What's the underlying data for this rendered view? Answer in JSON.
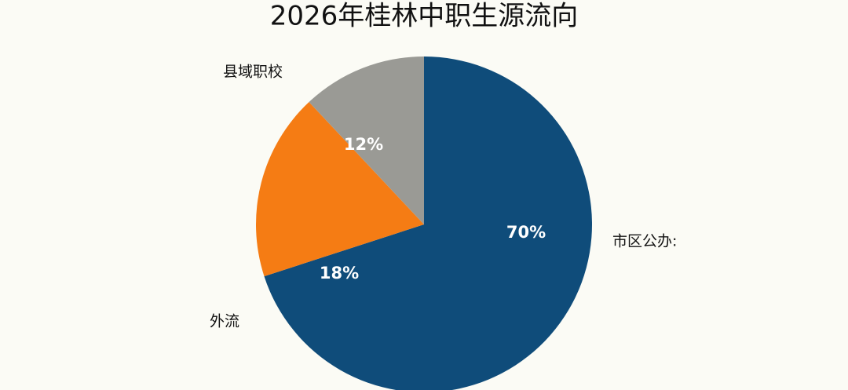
{
  "chart_data": {
    "type": "pie",
    "title": "2026年桂林中职生源流向",
    "categories": [
      "市区公办:",
      "外流",
      "县域职校"
    ],
    "values": [
      70,
      18,
      12
    ],
    "value_labels": [
      "70%",
      "18%",
      "12%"
    ],
    "colors": [
      "#0f4c7a",
      "#f57c14",
      "#9a9a95"
    ]
  }
}
